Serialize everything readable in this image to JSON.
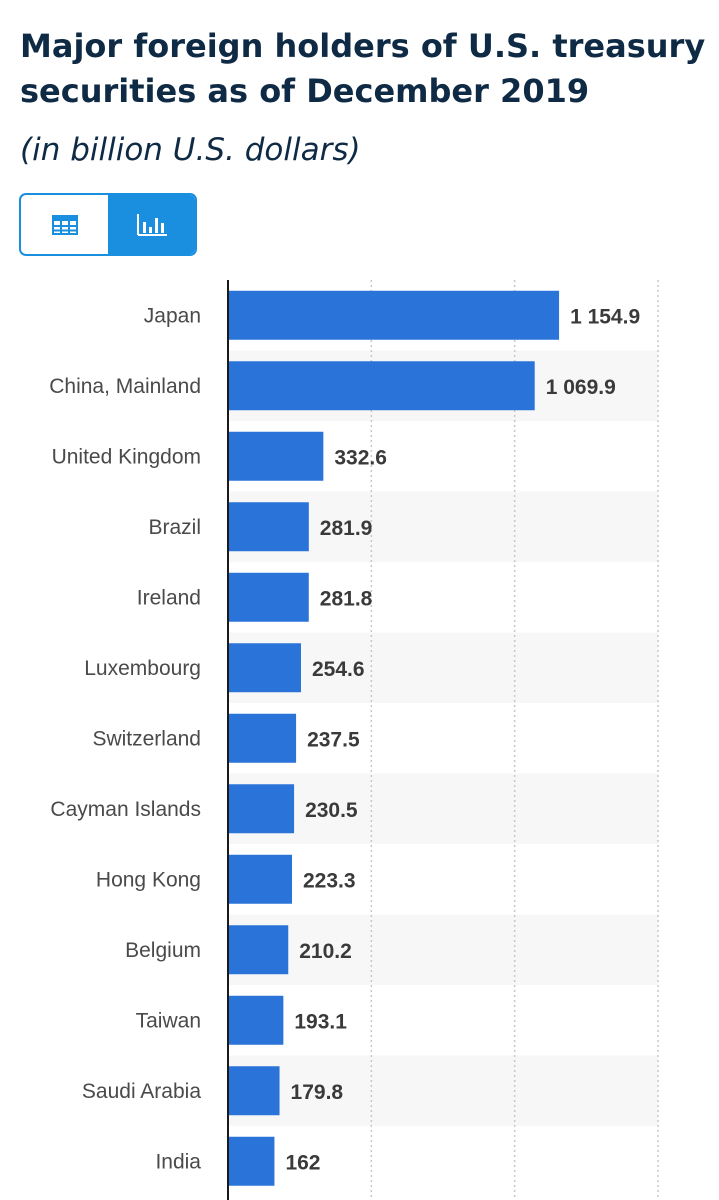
{
  "header": {
    "title": "Major foreign holders of U.S. treasury securities as of December 2019",
    "subtitle": "(in billion U.S. dollars)"
  },
  "view_toggle": {
    "options": [
      {
        "icon": "table-icon",
        "active": false
      },
      {
        "icon": "bar-chart-icon",
        "active": true
      }
    ]
  },
  "colors": {
    "accent": "#1a8fe0",
    "bar": "#2a74d9",
    "title": "#0f2a44",
    "row_stripe": "#f7f7f7"
  },
  "chart_data": {
    "type": "bar",
    "orientation": "horizontal",
    "categories": [
      "Japan",
      "China, Mainland",
      "United Kingdom",
      "Brazil",
      "Ireland",
      "Luxembourg",
      "Switzerland",
      "Cayman Islands",
      "Hong Kong",
      "Belgium",
      "Taiwan",
      "Saudi Arabia",
      "India"
    ],
    "values": [
      1154.9,
      1069.9,
      332.6,
      281.9,
      281.8,
      254.6,
      237.5,
      230.5,
      223.3,
      210.2,
      193.1,
      179.8,
      162
    ],
    "value_labels": [
      "1 154.9",
      "1 069.9",
      "332.6",
      "281.9",
      "281.8",
      "254.6",
      "237.5",
      "230.5",
      "223.3",
      "210.2",
      "193.1",
      "179.8",
      "162"
    ],
    "title": "Major foreign holders of U.S. treasury securities as of December 2019",
    "xlabel": "",
    "ylabel": "",
    "xlim": [
      0,
      1500
    ],
    "grid": true
  }
}
